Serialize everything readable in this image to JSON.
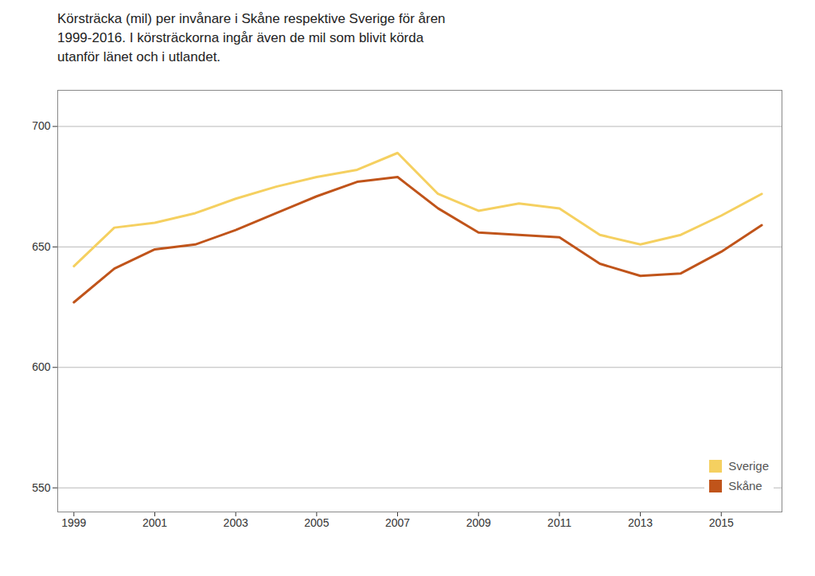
{
  "chart_data": {
    "type": "line",
    "title": "Körsträcka (mil) per invånare i Skåne respektive Sverige för åren\n1999-2016. I körsträckorna ingår även de mil som blivit körda\nutanför länet och i utlandet.",
    "x": [
      1999,
      2000,
      2001,
      2002,
      2003,
      2004,
      2005,
      2006,
      2007,
      2008,
      2009,
      2010,
      2011,
      2012,
      2013,
      2014,
      2015,
      2016
    ],
    "series": [
      {
        "name": "Sverige",
        "color": "#F5D060",
        "values": [
          642,
          658,
          660,
          664,
          670,
          675,
          679,
          682,
          689,
          672,
          665,
          668,
          666,
          655,
          651,
          655,
          663,
          672
        ]
      },
      {
        "name": "Skåne",
        "color": "#C0541A",
        "values": [
          627,
          641,
          649,
          651,
          657,
          664,
          671,
          677,
          679,
          666,
          656,
          655,
          654,
          643,
          638,
          639,
          648,
          659
        ]
      }
    ],
    "xlim": [
      1998.6,
      2016.5
    ],
    "xticks": [
      1999,
      2001,
      2003,
      2005,
      2007,
      2009,
      2011,
      2013,
      2015
    ],
    "ylim": [
      540,
      715
    ],
    "yticks": [
      550,
      600,
      650,
      700
    ],
    "grid": "y",
    "legend": "lower right"
  }
}
